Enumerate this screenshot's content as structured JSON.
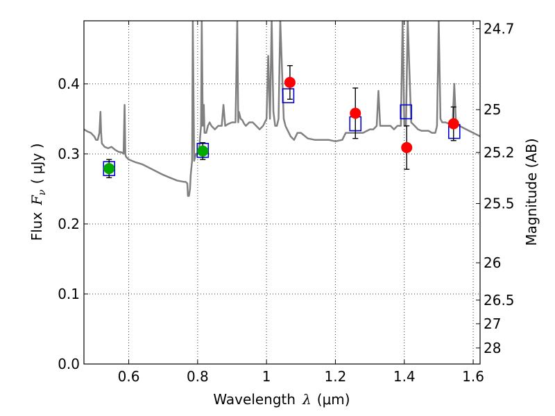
{
  "chart_data": {
    "type": "scatter",
    "xlabel": "Wavelength",
    "xlabel_symbol": "λ",
    "xlabel_unit": "(μm)",
    "ylabel": "Flux",
    "ylabel_symbol": "F",
    "ylabel_subscript": "ν",
    "ylabel_unit": "( μJy )",
    "y2label": "Magnitude (AB)",
    "xlim": [
      0.47,
      1.62
    ],
    "ylim": [
      0.0,
      0.49
    ],
    "grid": true,
    "x_ticks": [
      0.6,
      0.8,
      1.0,
      1.2,
      1.4,
      1.6
    ],
    "x_tick_labels": [
      "0.6",
      "0.8",
      "1",
      "1.2",
      "1.4",
      "1.6"
    ],
    "y_ticks": [
      0.0,
      0.1,
      0.2,
      0.3,
      0.4
    ],
    "y_tick_labels": [
      "0.0",
      "0.1",
      "0.2",
      "0.3",
      "0.4"
    ],
    "y2_ticks": [
      {
        "label": "24.7",
        "flux": 0.4786
      },
      {
        "label": "25",
        "flux": 0.3631
      },
      {
        "label": "25.2",
        "flux": 0.302
      },
      {
        "label": "25.5",
        "flux": 0.2291
      },
      {
        "label": "26",
        "flux": 0.1445
      },
      {
        "label": "26.5",
        "flux": 0.0912
      },
      {
        "label": "27",
        "flux": 0.0575
      },
      {
        "label": "28",
        "flux": 0.0229
      }
    ],
    "model_spectrum": {
      "color": "#808080",
      "x": [
        0.47,
        0.48,
        0.49,
        0.5,
        0.505,
        0.51,
        0.515,
        0.518,
        0.52,
        0.522,
        0.53,
        0.54,
        0.55,
        0.56,
        0.57,
        0.58,
        0.585,
        0.588,
        0.59,
        0.592,
        0.6,
        0.62,
        0.64,
        0.66,
        0.68,
        0.7,
        0.72,
        0.74,
        0.76,
        0.765,
        0.77,
        0.772,
        0.775,
        0.778,
        0.78,
        0.784,
        0.786,
        0.79,
        0.795,
        0.8,
        0.805,
        0.81,
        0.812,
        0.815,
        0.818,
        0.82,
        0.825,
        0.83,
        0.835,
        0.84,
        0.85,
        0.86,
        0.87,
        0.875,
        0.88,
        0.89,
        0.9,
        0.91,
        0.915,
        0.918,
        0.92,
        0.925,
        0.93,
        0.935,
        0.94,
        0.95,
        0.96,
        0.97,
        0.98,
        0.99,
        1.0,
        1.005,
        1.01,
        1.015,
        1.02,
        1.025,
        1.03,
        1.035,
        1.04,
        1.05,
        1.055,
        1.06,
        1.065,
        1.07,
        1.08,
        1.09,
        1.1,
        1.12,
        1.14,
        1.16,
        1.18,
        1.2,
        1.22,
        1.23,
        1.24,
        1.26,
        1.28,
        1.3,
        1.31,
        1.32,
        1.325,
        1.33,
        1.34,
        1.35,
        1.36,
        1.37,
        1.38,
        1.39,
        1.395,
        1.4,
        1.405,
        1.41,
        1.42,
        1.43,
        1.44,
        1.45,
        1.46,
        1.47,
        1.48,
        1.49,
        1.495,
        1.5,
        1.505,
        1.51,
        1.52,
        1.53,
        1.535,
        1.54,
        1.545,
        1.55,
        1.56,
        1.58,
        1.6,
        1.62
      ],
      "y": [
        0.335,
        0.332,
        0.33,
        0.325,
        0.32,
        0.32,
        0.33,
        0.36,
        0.33,
        0.315,
        0.31,
        0.308,
        0.31,
        0.306,
        0.303,
        0.302,
        0.3,
        0.37,
        0.3,
        0.296,
        0.292,
        0.288,
        0.285,
        0.28,
        0.275,
        0.27,
        0.266,
        0.262,
        0.26,
        0.26,
        0.258,
        0.24,
        0.24,
        0.25,
        0.27,
        0.29,
        0.49,
        0.29,
        0.3,
        0.3,
        0.31,
        0.34,
        0.49,
        0.34,
        0.37,
        0.33,
        0.33,
        0.34,
        0.345,
        0.34,
        0.335,
        0.34,
        0.34,
        0.37,
        0.34,
        0.343,
        0.345,
        0.345,
        0.49,
        0.345,
        0.36,
        0.35,
        0.348,
        0.343,
        0.34,
        0.345,
        0.345,
        0.34,
        0.335,
        0.34,
        0.35,
        0.44,
        0.35,
        0.49,
        0.36,
        0.34,
        0.34,
        0.35,
        0.49,
        0.35,
        0.34,
        0.335,
        0.33,
        0.325,
        0.32,
        0.33,
        0.33,
        0.322,
        0.32,
        0.32,
        0.32,
        0.318,
        0.32,
        0.33,
        0.33,
        0.33,
        0.33,
        0.335,
        0.335,
        0.34,
        0.39,
        0.34,
        0.34,
        0.34,
        0.34,
        0.335,
        0.34,
        0.34,
        0.49,
        0.34,
        0.34,
        0.49,
        0.345,
        0.34,
        0.335,
        0.333,
        0.333,
        0.333,
        0.33,
        0.33,
        0.34,
        0.49,
        0.35,
        0.345,
        0.345,
        0.343,
        0.345,
        0.34,
        0.4,
        0.345,
        0.34,
        0.335,
        0.33,
        0.325
      ]
    },
    "series": [
      {
        "marker": "open-square",
        "color": "#0000cc",
        "x": [
          0.543,
          0.815,
          1.063,
          1.258,
          1.405,
          1.545
        ],
        "y": [
          0.279,
          0.305,
          0.383,
          0.343,
          0.36,
          0.332
        ]
      },
      {
        "marker": "filled-circle",
        "color": "#00aa00",
        "x": [
          0.543,
          0.815
        ],
        "y": [
          0.279,
          0.304
        ],
        "err": [
          0.013,
          0.012
        ]
      },
      {
        "marker": "filled-circle",
        "color": "#ff0000",
        "x": [
          1.068,
          1.258,
          1.407,
          1.543
        ],
        "y": [
          0.402,
          0.358,
          0.309,
          0.343
        ],
        "err": [
          0.024,
          0.036,
          0.031,
          0.024
        ]
      }
    ]
  }
}
